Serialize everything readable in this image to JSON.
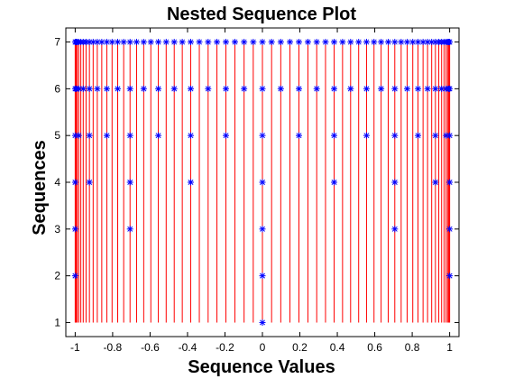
{
  "chart_data": {
    "type": "scatter",
    "title": "Nested Sequence Plot",
    "xlabel": "Sequence Values",
    "ylabel": "Sequences",
    "xlim": [
      -1.05,
      1.05
    ],
    "ylim": [
      0.7,
      7.3
    ],
    "xticks": [
      -1,
      -0.8,
      -0.6,
      -0.4,
      -0.2,
      0,
      0.2,
      0.4,
      0.6,
      0.8,
      1
    ],
    "xtick_labels": [
      "-1",
      "-0.8",
      "-0.6",
      "-0.4",
      "-0.2",
      "0",
      "0.2",
      "0.4",
      "0.6",
      "0.8",
      "1"
    ],
    "yticks": [
      1,
      2,
      3,
      4,
      5,
      6,
      7
    ],
    "ytick_labels": [
      "1",
      "2",
      "3",
      "4",
      "5",
      "6",
      "7"
    ],
    "grid": false,
    "legend": "none",
    "marker": "*",
    "marker_color": "#0000ff",
    "stem_color": "#ff0000",
    "stem_baseline": 1,
    "series": [
      {
        "points": [
          {
            "x": -1,
            "y": 2
          },
          {
            "x": 1,
            "y": 2
          },
          {
            "x": -1,
            "y": 3
          },
          {
            "x": -0.707,
            "y": 3
          },
          {
            "x": 0.707,
            "y": 3
          },
          {
            "x": 1,
            "y": 3
          },
          {
            "x": -1,
            "y": 4
          },
          {
            "x": -0.924,
            "y": 4
          },
          {
            "x": -0.707,
            "y": 4
          },
          {
            "x": -0.383,
            "y": 4
          },
          {
            "x": 0.383,
            "y": 4
          },
          {
            "x": 0.707,
            "y": 4
          },
          {
            "x": 0.924,
            "y": 4
          },
          {
            "x": 1,
            "y": 4
          },
          {
            "x": -1,
            "y": 5
          },
          {
            "x": -0.981,
            "y": 5
          },
          {
            "x": -0.924,
            "y": 5
          },
          {
            "x": -0.831,
            "y": 5
          },
          {
            "x": -0.707,
            "y": 5
          },
          {
            "x": -0.556,
            "y": 5
          },
          {
            "x": -0.383,
            "y": 5
          },
          {
            "x": -0.195,
            "y": 5
          },
          {
            "x": 0.195,
            "y": 5
          },
          {
            "x": 0.383,
            "y": 5
          },
          {
            "x": 0.556,
            "y": 5
          },
          {
            "x": 0.707,
            "y": 5
          },
          {
            "x": 0.831,
            "y": 5
          },
          {
            "x": 0.924,
            "y": 5
          },
          {
            "x": 0.981,
            "y": 5
          },
          {
            "x": 1,
            "y": 5
          },
          {
            "x": -1,
            "y": 6
          },
          {
            "x": -0.995,
            "y": 6
          },
          {
            "x": -0.981,
            "y": 6
          },
          {
            "x": -0.957,
            "y": 6
          },
          {
            "x": -0.924,
            "y": 6
          },
          {
            "x": -0.882,
            "y": 6
          },
          {
            "x": -0.831,
            "y": 6
          },
          {
            "x": -0.773,
            "y": 6
          },
          {
            "x": -0.707,
            "y": 6
          },
          {
            "x": -0.634,
            "y": 6
          },
          {
            "x": -0.556,
            "y": 6
          },
          {
            "x": -0.471,
            "y": 6
          },
          {
            "x": -0.383,
            "y": 6
          },
          {
            "x": -0.29,
            "y": 6
          },
          {
            "x": -0.195,
            "y": 6
          },
          {
            "x": -0.098,
            "y": 6
          },
          {
            "x": 0.098,
            "y": 6
          },
          {
            "x": 0.195,
            "y": 6
          },
          {
            "x": 0.29,
            "y": 6
          },
          {
            "x": 0.383,
            "y": 6
          },
          {
            "x": 0.471,
            "y": 6
          },
          {
            "x": 0.556,
            "y": 6
          },
          {
            "x": 0.634,
            "y": 6
          },
          {
            "x": 0.707,
            "y": 6
          },
          {
            "x": 0.773,
            "y": 6
          },
          {
            "x": 0.831,
            "y": 6
          },
          {
            "x": 0.882,
            "y": 6
          },
          {
            "x": 0.924,
            "y": 6
          },
          {
            "x": 0.957,
            "y": 6
          },
          {
            "x": 0.981,
            "y": 6
          },
          {
            "x": 0.995,
            "y": 6
          },
          {
            "x": 1,
            "y": 6
          },
          {
            "x": -1,
            "y": 7
          },
          {
            "x": -0.999,
            "y": 7
          },
          {
            "x": -0.995,
            "y": 7
          },
          {
            "x": -0.989,
            "y": 7
          },
          {
            "x": -0.981,
            "y": 7
          },
          {
            "x": -0.97,
            "y": 7
          },
          {
            "x": -0.957,
            "y": 7
          },
          {
            "x": -0.942,
            "y": 7
          },
          {
            "x": -0.924,
            "y": 7
          },
          {
            "x": -0.904,
            "y": 7
          },
          {
            "x": -0.882,
            "y": 7
          },
          {
            "x": -0.858,
            "y": 7
          },
          {
            "x": -0.831,
            "y": 7
          },
          {
            "x": -0.803,
            "y": 7
          },
          {
            "x": -0.773,
            "y": 7
          },
          {
            "x": -0.741,
            "y": 7
          },
          {
            "x": -0.707,
            "y": 7
          },
          {
            "x": -0.672,
            "y": 7
          },
          {
            "x": -0.634,
            "y": 7
          },
          {
            "x": -0.596,
            "y": 7
          },
          {
            "x": -0.556,
            "y": 7
          },
          {
            "x": -0.514,
            "y": 7
          },
          {
            "x": -0.471,
            "y": 7
          },
          {
            "x": -0.428,
            "y": 7
          },
          {
            "x": -0.383,
            "y": 7
          },
          {
            "x": -0.337,
            "y": 7
          },
          {
            "x": -0.29,
            "y": 7
          },
          {
            "x": -0.243,
            "y": 7
          },
          {
            "x": -0.195,
            "y": 7
          },
          {
            "x": -0.147,
            "y": 7
          },
          {
            "x": -0.098,
            "y": 7
          },
          {
            "x": -0.049,
            "y": 7
          },
          {
            "x": 0.049,
            "y": 7
          },
          {
            "x": 0.098,
            "y": 7
          },
          {
            "x": 0.147,
            "y": 7
          },
          {
            "x": 0.195,
            "y": 7
          },
          {
            "x": 0.243,
            "y": 7
          },
          {
            "x": 0.29,
            "y": 7
          },
          {
            "x": 0.337,
            "y": 7
          },
          {
            "x": 0.383,
            "y": 7
          },
          {
            "x": 0.428,
            "y": 7
          },
          {
            "x": 0.471,
            "y": 7
          },
          {
            "x": 0.514,
            "y": 7
          },
          {
            "x": 0.556,
            "y": 7
          },
          {
            "x": 0.596,
            "y": 7
          },
          {
            "x": 0.634,
            "y": 7
          },
          {
            "x": 0.672,
            "y": 7
          },
          {
            "x": 0.707,
            "y": 7
          },
          {
            "x": 0.741,
            "y": 7
          },
          {
            "x": 0.773,
            "y": 7
          },
          {
            "x": 0.803,
            "y": 7
          },
          {
            "x": 0.831,
            "y": 7
          },
          {
            "x": 0.858,
            "y": 7
          },
          {
            "x": 0.882,
            "y": 7
          },
          {
            "x": 0.904,
            "y": 7
          },
          {
            "x": 0.924,
            "y": 7
          },
          {
            "x": 0.942,
            "y": 7
          },
          {
            "x": 0.957,
            "y": 7
          },
          {
            "x": 0.97,
            "y": 7
          },
          {
            "x": 0.981,
            "y": 7
          },
          {
            "x": 0.989,
            "y": 7
          },
          {
            "x": 0.995,
            "y": 7
          },
          {
            "x": 0.999,
            "y": 7
          },
          {
            "x": 1,
            "y": 7
          },
          {
            "x": 0,
            "y": 1
          },
          {
            "x": 0,
            "y": 2
          },
          {
            "x": 0,
            "y": 3
          },
          {
            "x": 0,
            "y": 4
          },
          {
            "x": 0,
            "y": 5
          },
          {
            "x": 0,
            "y": 6
          },
          {
            "x": 0,
            "y": 7
          }
        ]
      }
    ]
  }
}
